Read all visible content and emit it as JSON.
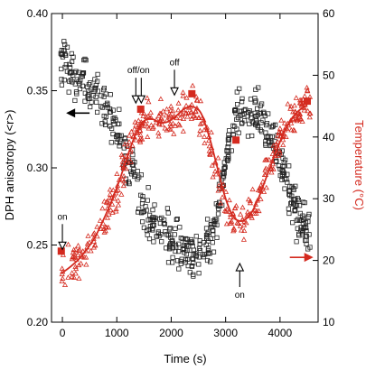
{
  "chart_data": {
    "type": "scatter",
    "title": "",
    "xlabel": "Time (s)",
    "ylabel_left": "DPH anisotropy (<r>)",
    "ylabel_right": "Temperature (°C)",
    "xlim": [
      -200,
      4700
    ],
    "ylim_left": [
      0.2,
      0.4
    ],
    "ylim_right": [
      10,
      60
    ],
    "x_ticks": [
      0,
      1000,
      2000,
      3000,
      4000
    ],
    "y_ticks_left": [
      "0.20",
      "0.25",
      "0.30",
      "0.35",
      "0.40"
    ],
    "y_ticks_right": [
      "10",
      "20",
      "30",
      "40",
      "50",
      "60"
    ],
    "grid": false,
    "colors": {
      "anisotropy": "#222222",
      "temperature": "#d42a1f"
    },
    "series": [
      {
        "kind": "anisotropy-squares",
        "axis": "left",
        "trend_x": [
          0,
          200,
          400,
          600,
          800,
          1000,
          1200,
          1400,
          1550,
          1700,
          1850,
          2000,
          2150,
          2300,
          2450,
          2600,
          2750,
          2900,
          3050,
          3200,
          3400,
          3550,
          3700,
          3850,
          4000,
          4150,
          4300,
          4450,
          4600
        ],
        "trend_y": [
          0.37,
          0.362,
          0.355,
          0.347,
          0.337,
          0.323,
          0.305,
          0.283,
          0.268,
          0.263,
          0.258,
          0.252,
          0.248,
          0.244,
          0.242,
          0.245,
          0.258,
          0.28,
          0.31,
          0.335,
          0.34,
          0.336,
          0.33,
          0.322,
          0.308,
          0.29,
          0.272,
          0.26,
          0.255
        ],
        "n_points": 560,
        "spread": 0.011
      },
      {
        "kind": "temperature-triangles",
        "axis": "right",
        "trend_x": [
          0,
          200,
          400,
          600,
          800,
          1000,
          1150,
          1300,
          1450,
          1600,
          1750,
          1900,
          2050,
          2200,
          2350,
          2500,
          2650,
          2800,
          2950,
          3100,
          3250,
          3400,
          3550,
          3700,
          3850,
          4000,
          4150,
          4300,
          4450,
          4550
        ],
        "trend_y": [
          18,
          19.5,
          21,
          23.5,
          27,
          31,
          35.5,
          40.5,
          42.5,
          43.0,
          42.3,
          42.4,
          43.3,
          44.5,
          44.8,
          44.0,
          40.5,
          35.5,
          30.5,
          27.2,
          26.5,
          27.3,
          29.8,
          33.0,
          36.5,
          40.0,
          42.5,
          44.0,
          45.0,
          45.3
        ],
        "n_points": 430,
        "spread": 2.2
      },
      {
        "kind": "temperature-fit",
        "axis": "right",
        "x": [
          0,
          150,
          300,
          450,
          600,
          750,
          900,
          1050,
          1200,
          1350,
          1500,
          1650,
          1800,
          1950,
          2100,
          2250,
          2400,
          2550,
          2700,
          2850,
          3000,
          3150,
          3300,
          3450,
          3600,
          3750,
          3900,
          4050,
          4200,
          4350,
          4500
        ],
        "y": [
          18,
          19,
          20.2,
          21.8,
          23.8,
          26.5,
          29.5,
          33.0,
          37.0,
          40.5,
          42.6,
          42.9,
          42.3,
          42.5,
          43.5,
          44.6,
          44.9,
          43.8,
          40.0,
          35.0,
          30.0,
          27.0,
          26.4,
          27.4,
          30.0,
          33.5,
          37.0,
          40.3,
          42.8,
          44.3,
          45.2
        ]
      },
      {
        "kind": "filled-squares",
        "axis": "right",
        "x": [
          -20,
          1440,
          2380,
          3190,
          4500
        ],
        "y": [
          21.5,
          44.5,
          47.0,
          39.5,
          45.8
        ]
      }
    ],
    "annotations": [
      {
        "label": "on",
        "kind": "arrow-down-open",
        "x": 0,
        "y_right": 21.8
      },
      {
        "label": "off/on",
        "kind": "double-arrow-down-open",
        "x": 1400,
        "y_right": 45.5
      },
      {
        "label": "off",
        "kind": "arrow-down-open",
        "x": 2060,
        "y_right": 46.8
      },
      {
        "label": "on",
        "kind": "arrow-up-open",
        "x": 3260,
        "y_right": 19.5
      },
      {
        "label": "",
        "kind": "axis-pointer-left",
        "x": 500,
        "y_left": 0.3355
      },
      {
        "label": "",
        "kind": "axis-pointer-right",
        "x": 4180,
        "y_right": 20.5
      }
    ]
  }
}
